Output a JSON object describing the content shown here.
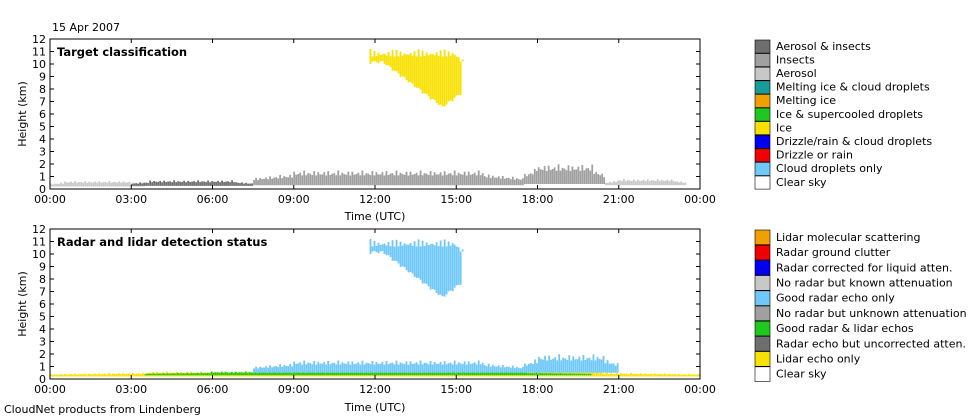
{
  "date": "15 Apr 2007",
  "footer": "CloudNet products from Lindenberg",
  "chart_data": [
    {
      "type": "heatmap",
      "title": "Target classification",
      "xlabel": "Time (UTC)",
      "ylabel": "Height (km)",
      "xticks": [
        "00:00",
        "03:00",
        "06:00",
        "09:00",
        "12:00",
        "15:00",
        "18:00",
        "21:00",
        "00:00"
      ],
      "xlim_hours": [
        0,
        24
      ],
      "ylim": [
        0,
        12
      ],
      "yticks": [
        0,
        1,
        2,
        3,
        4,
        5,
        6,
        7,
        8,
        9,
        10,
        11,
        12
      ],
      "legend": [
        {
          "label": "Aerosol & insects",
          "color": "#6e6e6e"
        },
        {
          "label": "Insects",
          "color": "#a0a0a0"
        },
        {
          "label": "Aerosol",
          "color": "#c8c8c8"
        },
        {
          "label": "Melting ice & cloud droplets",
          "color": "#189c98"
        },
        {
          "label": "Melting ice",
          "color": "#f0a000"
        },
        {
          "label": "Ice & supercooled droplets",
          "color": "#1ec81e"
        },
        {
          "label": "Ice",
          "color": "#f8e000"
        },
        {
          "label": "Drizzle/rain & cloud droplets",
          "color": "#0000f0"
        },
        {
          "label": "Drizzle or rain",
          "color": "#f00000"
        },
        {
          "label": "Cloud droplets only",
          "color": "#70c8f8"
        },
        {
          "label": "Clear sky",
          "color": "#ffffff"
        }
      ],
      "regions": [
        {
          "class": "Aerosol",
          "color": "#c8c8c8",
          "t_start": 0,
          "t_end": 3.5,
          "h_bottom": 0.2,
          "h_top": 0.65
        },
        {
          "class": "Aerosol & insects",
          "color": "#6e6e6e",
          "t_start": 3,
          "t_end": 7.5,
          "h_bottom": 0.25,
          "h_top": 0.7
        },
        {
          "class": "Insects",
          "color": "#a0a0a0",
          "t_start": 7.5,
          "t_end": 17.5,
          "h_bottom": 0.3,
          "h_top": 1.5
        },
        {
          "class": "Insects",
          "color": "#a0a0a0",
          "t_start": 17.5,
          "t_end": 20.5,
          "h_bottom": 0.4,
          "h_top": 2.0
        },
        {
          "class": "Aerosol",
          "color": "#c8c8c8",
          "t_start": 20.5,
          "t_end": 23.5,
          "h_bottom": 0.3,
          "h_top": 0.8
        },
        {
          "class": "Ice",
          "color": "#f8e000",
          "t_start": 11.8,
          "t_end": 15.5,
          "h_bottom": 6.4,
          "h_top": 11.2
        }
      ]
    },
    {
      "type": "heatmap",
      "title": "Radar and lidar detection status",
      "xlabel": "Time (UTC)",
      "ylabel": "Height (km)",
      "xticks": [
        "00:00",
        "03:00",
        "06:00",
        "09:00",
        "12:00",
        "15:00",
        "18:00",
        "21:00",
        "00:00"
      ],
      "xlim_hours": [
        0,
        24
      ],
      "ylim": [
        0,
        12
      ],
      "yticks": [
        0,
        1,
        2,
        3,
        4,
        5,
        6,
        7,
        8,
        9,
        10,
        11,
        12
      ],
      "legend": [
        {
          "label": "Lidar molecular scattering",
          "color": "#f0a000"
        },
        {
          "label": "Radar ground clutter",
          "color": "#f00000"
        },
        {
          "label": "Radar corrected for liquid atten.",
          "color": "#0000f0"
        },
        {
          "label": "No radar but known attenuation",
          "color": "#c8c8c8"
        },
        {
          "label": "Good radar echo only",
          "color": "#70c8f8"
        },
        {
          "label": "No radar but unknown attenuation",
          "color": "#a0a0a0"
        },
        {
          "label": "Good radar & lidar echos",
          "color": "#1ec81e"
        },
        {
          "label": "Radar echo but uncorrected atten.",
          "color": "#6e6e6e"
        },
        {
          "label": "Lidar echo only",
          "color": "#f8e000"
        },
        {
          "label": "Clear sky",
          "color": "#ffffff"
        }
      ],
      "regions": [
        {
          "class": "Lidar echo only",
          "color": "#f8e000",
          "t_start": 0,
          "t_end": 24,
          "h_bottom": 0.2,
          "h_top": 0.6
        },
        {
          "class": "Good radar & lidar echos",
          "color": "#1ec81e",
          "t_start": 3.5,
          "t_end": 20,
          "h_bottom": 0.3,
          "h_top": 0.6
        },
        {
          "class": "Good radar echo only",
          "color": "#70c8f8",
          "t_start": 7.5,
          "t_end": 17.5,
          "h_bottom": 0.5,
          "h_top": 1.5
        },
        {
          "class": "Good radar echo only",
          "color": "#70c8f8",
          "t_start": 17.5,
          "t_end": 21,
          "h_bottom": 0.5,
          "h_top": 2.0
        },
        {
          "class": "Good radar echo only",
          "color": "#70c8f8",
          "t_start": 11.8,
          "t_end": 15.5,
          "h_bottom": 6.4,
          "h_top": 11.2
        }
      ]
    }
  ]
}
